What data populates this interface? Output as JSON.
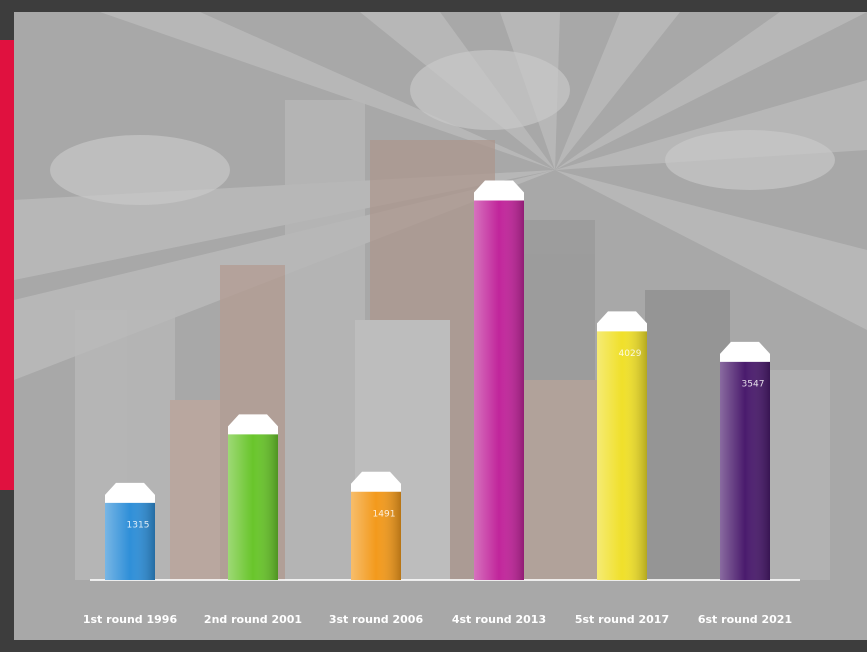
{
  "chart_data": {
    "type": "bar",
    "categories": [
      "1st round 1996",
      "2nd round 2001",
      "3st round 2006",
      "4st round 2013",
      "5st round 2017",
      "6st round 2021"
    ],
    "values": [
      1315,
      2400,
      1491,
      6100,
      4029,
      3547
    ],
    "value_labels": [
      "1315",
      null,
      "1491",
      null,
      "4029",
      "3547"
    ],
    "colors": [
      "#2f8fd8",
      "#69c52b",
      "#f39a1c",
      "#c1259b",
      "#f0e02a",
      "#4a1b6d"
    ]
  }
}
